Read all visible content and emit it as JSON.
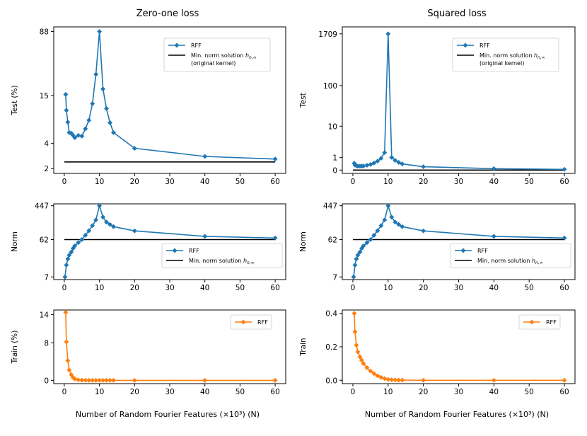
{
  "colors": {
    "blue": "#1f77b4",
    "orange": "#ff7f0e",
    "black": "#000000"
  },
  "column_titles": {
    "left": "Zero-one loss",
    "right": "Squared loss"
  },
  "xlabels": {
    "left": "Number of Random Fourier Features (×10³) (N)",
    "right": "Number of Random Fourier Features (×10³) (N)"
  },
  "legend_text": {
    "rff": "RFF",
    "min_norm_prefix": "Min. norm solution ",
    "h_sub": "n,∞",
    "original_kernel": "(original kernel)"
  },
  "chart_data": [
    {
      "id": "test01",
      "type": "line",
      "title": "Zero-one loss",
      "ylabel": "Test (%)",
      "yscale": "log",
      "ylim": [
        1.75,
        100
      ],
      "xlim": [
        -3,
        63
      ],
      "xticks": [
        0,
        10,
        20,
        30,
        40,
        50,
        60
      ],
      "yticks": [
        2,
        4,
        15,
        88
      ],
      "x": [
        0.4,
        0.6,
        1,
        1.4,
        2,
        2.5,
        3,
        4,
        5,
        6,
        7,
        8,
        9,
        10,
        11,
        12,
        13,
        14,
        20,
        40,
        60
      ],
      "series": [
        {
          "name": "RFF",
          "values": [
            15.5,
            10,
            7.2,
            5.4,
            5.3,
            5,
            4.7,
            5,
            4.9,
            6,
            7.6,
            12,
            27,
            88,
            18,
            10.5,
            7.1,
            5.4,
            3.5,
            2.8,
            2.6
          ]
        }
      ],
      "reference": {
        "name": "Min. norm solution h_{n,∞} (original kernel)",
        "value": 2.4
      }
    },
    {
      "id": "testsq",
      "type": "line",
      "title": "Squared loss",
      "ylabel": "Test",
      "yscale": "symlog",
      "ylim": [
        -0.2,
        2500
      ],
      "xlim": [
        -3,
        63
      ],
      "xticks": [
        0,
        10,
        20,
        30,
        40,
        50,
        60
      ],
      "yticks": [
        0,
        1,
        10,
        100,
        1709
      ],
      "x": [
        0.4,
        0.6,
        1,
        1.4,
        2,
        2.5,
        3,
        4,
        5,
        6,
        7,
        8,
        9,
        10,
        11,
        12,
        13,
        14,
        20,
        40,
        60
      ],
      "series": [
        {
          "name": "RFF",
          "values": [
            0.45,
            0.32,
            0.27,
            0.24,
            0.24,
            0.24,
            0.25,
            0.3,
            0.36,
            0.47,
            0.63,
            0.9,
            1.6,
            1709,
            1.0,
            0.7,
            0.52,
            0.4,
            0.2,
            0.08,
            0.04
          ]
        }
      ],
      "reference": {
        "name": "Min. norm solution h_{n,∞} (original kernel)",
        "value": 0
      }
    },
    {
      "id": "norm01",
      "type": "line",
      "ylabel": "Norm",
      "yscale": "log",
      "ylim": [
        6,
        500
      ],
      "xlim": [
        -3,
        63
      ],
      "xticks": [
        0,
        10,
        20,
        30,
        40,
        50,
        60
      ],
      "yticks": [
        7,
        62,
        447
      ],
      "x": [
        0.2,
        0.6,
        1,
        1.4,
        2,
        2.5,
        3,
        4,
        5,
        6,
        7,
        8,
        9,
        10,
        11,
        12,
        13,
        14,
        20,
        40,
        60
      ],
      "series": [
        {
          "name": "RFF",
          "values": [
            7,
            14,
            20,
            25,
            30,
            37,
            43,
            52,
            62,
            80,
            104,
            140,
            195,
            447,
            230,
            172,
            150,
            132,
            103,
            75,
            68
          ]
        }
      ],
      "reference": {
        "name": "Min. norm solution h_{n,∞}",
        "value": 62
      }
    },
    {
      "id": "normsq",
      "type": "line",
      "ylabel": "Norm",
      "yscale": "log",
      "ylim": [
        6,
        500
      ],
      "xlim": [
        -3,
        63
      ],
      "xticks": [
        0,
        10,
        20,
        30,
        40,
        50,
        60
      ],
      "yticks": [
        7,
        62,
        447
      ],
      "x": [
        0.2,
        0.6,
        1,
        1.4,
        2,
        2.5,
        3,
        4,
        5,
        6,
        7,
        8,
        9,
        10,
        11,
        12,
        13,
        14,
        20,
        40,
        60
      ],
      "series": [
        {
          "name": "RFF",
          "values": [
            7,
            14,
            20,
            25,
            30,
            37,
            43,
            52,
            62,
            80,
            104,
            140,
            195,
            447,
            230,
            172,
            150,
            132,
            103,
            75,
            68
          ]
        }
      ],
      "reference": {
        "name": "Min. norm solution h_{n,∞}",
        "value": 62
      }
    },
    {
      "id": "train01",
      "type": "line",
      "ylabel": "Train (%)",
      "yscale": "linear",
      "ylim": [
        -0.7,
        15
      ],
      "xlim": [
        -3,
        63
      ],
      "xticks": [
        0,
        10,
        20,
        30,
        40,
        50,
        60
      ],
      "yticks": [
        0,
        8,
        14
      ],
      "x": [
        0.4,
        0.6,
        1,
        1.4,
        2,
        2.5,
        3,
        4,
        5,
        6,
        7,
        8,
        9,
        10,
        11,
        12,
        13,
        14,
        20,
        40,
        60
      ],
      "series": [
        {
          "name": "RFF",
          "values": [
            14.5,
            8.2,
            4.2,
            2.2,
            1.2,
            0.6,
            0.3,
            0.1,
            0.05,
            0.02,
            0,
            0,
            0,
            0,
            0,
            0,
            0,
            0,
            0,
            0,
            0
          ]
        }
      ]
    },
    {
      "id": "trainsq",
      "type": "line",
      "ylabel": "Train",
      "yscale": "linear",
      "ylim": [
        -0.02,
        0.42
      ],
      "xlim": [
        -3,
        63
      ],
      "xticks": [
        0,
        10,
        20,
        30,
        40,
        50,
        60
      ],
      "yticks": [
        0.0,
        0.2,
        0.4
      ],
      "ytick_labels": [
        "0.0",
        "0.2",
        "0.4"
      ],
      "x": [
        0.4,
        0.6,
        1,
        1.4,
        2,
        2.5,
        3,
        4,
        5,
        6,
        7,
        8,
        9,
        10,
        11,
        12,
        13,
        14,
        20,
        40,
        60
      ],
      "series": [
        {
          "name": "RFF",
          "values": [
            0.4,
            0.29,
            0.21,
            0.17,
            0.14,
            0.12,
            0.1,
            0.075,
            0.055,
            0.04,
            0.027,
            0.017,
            0.01,
            0.005,
            0.003,
            0.002,
            0.001,
            0.001,
            0,
            0,
            0
          ]
        }
      ]
    }
  ]
}
